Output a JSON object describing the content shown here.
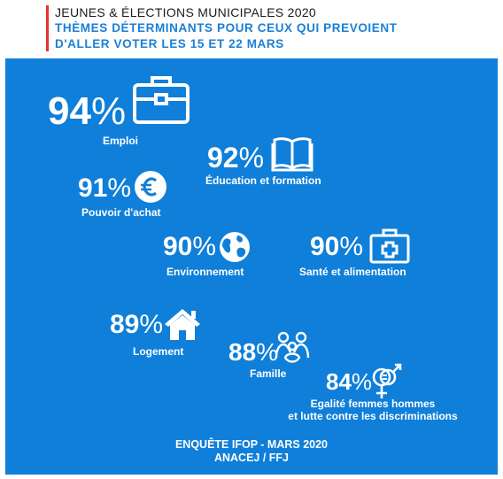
{
  "header": {
    "title": "JEUNES & ÉLECTIONS MUNICIPALES 2020",
    "subtitle_line1": "THÈMES DÉTERMINANTS POUR CEUX QUI PREVOIENT",
    "subtitle_line2": "D'ALLER VOTER LES 15 ET 22 MARS"
  },
  "colors": {
    "background": "#0f7fd9",
    "accent": "#1a7fd6",
    "red_rule": "#e3342f",
    "text": "#ffffff"
  },
  "chart_data": {
    "type": "table",
    "title": "THÈMES DÉTERMINANTS POUR CEUX QUI PREVOIENT D'ALLER VOTER LES 15 ET 22 MARS",
    "unit": "%",
    "items": [
      {
        "label": "Emploi",
        "value": 94,
        "icon": "briefcase-icon"
      },
      {
        "label": "Éducation et formation",
        "value": 92,
        "icon": "book-icon"
      },
      {
        "label": "Pouvoir d'achat",
        "value": 91,
        "icon": "euro-icon"
      },
      {
        "label": "Environnement",
        "value": 90,
        "icon": "globe-icon"
      },
      {
        "label": "Santé et alimentation",
        "value": 90,
        "icon": "first-aid-kit-icon"
      },
      {
        "label": "Logement",
        "value": 89,
        "icon": "house-icon"
      },
      {
        "label": "Famille",
        "value": 88,
        "icon": "family-icon"
      },
      {
        "label": "Egalité femmes hommes",
        "label_line2": "et lutte contre les discriminations",
        "value": 84,
        "icon": "gender-symbols-icon"
      }
    ]
  },
  "footer": {
    "line1": "ENQUÊTE IFOP - MARS 2020",
    "line2": "ANACEJ / FFJ"
  }
}
